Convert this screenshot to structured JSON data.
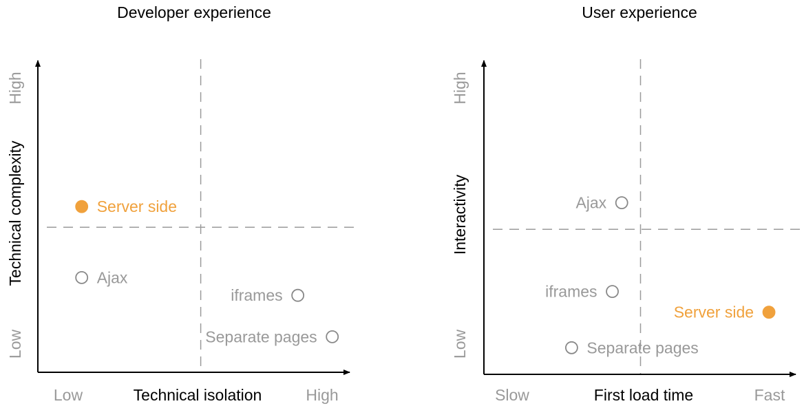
{
  "colors": {
    "axis": "#000000",
    "guide": "#9a9a9a",
    "muted": "#999999",
    "highlight": "#f0a13c"
  },
  "chart_data": [
    {
      "type": "scatter",
      "title": "Developer experience",
      "xlabel": "Technical isolation",
      "ylabel": "Technical complexity",
      "x_tick_low": "Low",
      "x_tick_high": "High",
      "y_tick_low": "Low",
      "y_tick_high": "High",
      "xlim": [
        0,
        1
      ],
      "ylim": [
        0,
        1
      ],
      "quadrant_dividers": {
        "x": 0.52,
        "y": 0.49
      },
      "points": [
        {
          "label": "Server side",
          "x": 0.14,
          "y": 0.56,
          "filled": true,
          "label_side": "right"
        },
        {
          "label": "Ajax",
          "x": 0.14,
          "y": 0.32,
          "filled": false,
          "label_side": "right"
        },
        {
          "label": "iframes",
          "x": 0.83,
          "y": 0.26,
          "filled": false,
          "label_side": "left"
        },
        {
          "label": "Separate pages",
          "x": 0.94,
          "y": 0.12,
          "filled": false,
          "label_side": "left"
        }
      ]
    },
    {
      "type": "scatter",
      "title": "User experience",
      "xlabel": "First load time",
      "ylabel": "Interactivity",
      "x_tick_low": "Slow",
      "x_tick_high": "Fast",
      "y_tick_low": "Low",
      "y_tick_high": "High",
      "xlim": [
        0,
        1
      ],
      "ylim": [
        0,
        1
      ],
      "quadrant_dividers": {
        "x": 0.5,
        "y": 0.49
      },
      "points": [
        {
          "label": "Ajax",
          "x": 0.44,
          "y": 0.58,
          "filled": false,
          "label_side": "left"
        },
        {
          "label": "iframes",
          "x": 0.41,
          "y": 0.28,
          "filled": false,
          "label_side": "left"
        },
        {
          "label": "Server side",
          "x": 0.91,
          "y": 0.21,
          "filled": true,
          "label_side": "left"
        },
        {
          "label": "Separate pages",
          "x": 0.28,
          "y": 0.09,
          "filled": false,
          "label_side": "right"
        }
      ]
    }
  ]
}
